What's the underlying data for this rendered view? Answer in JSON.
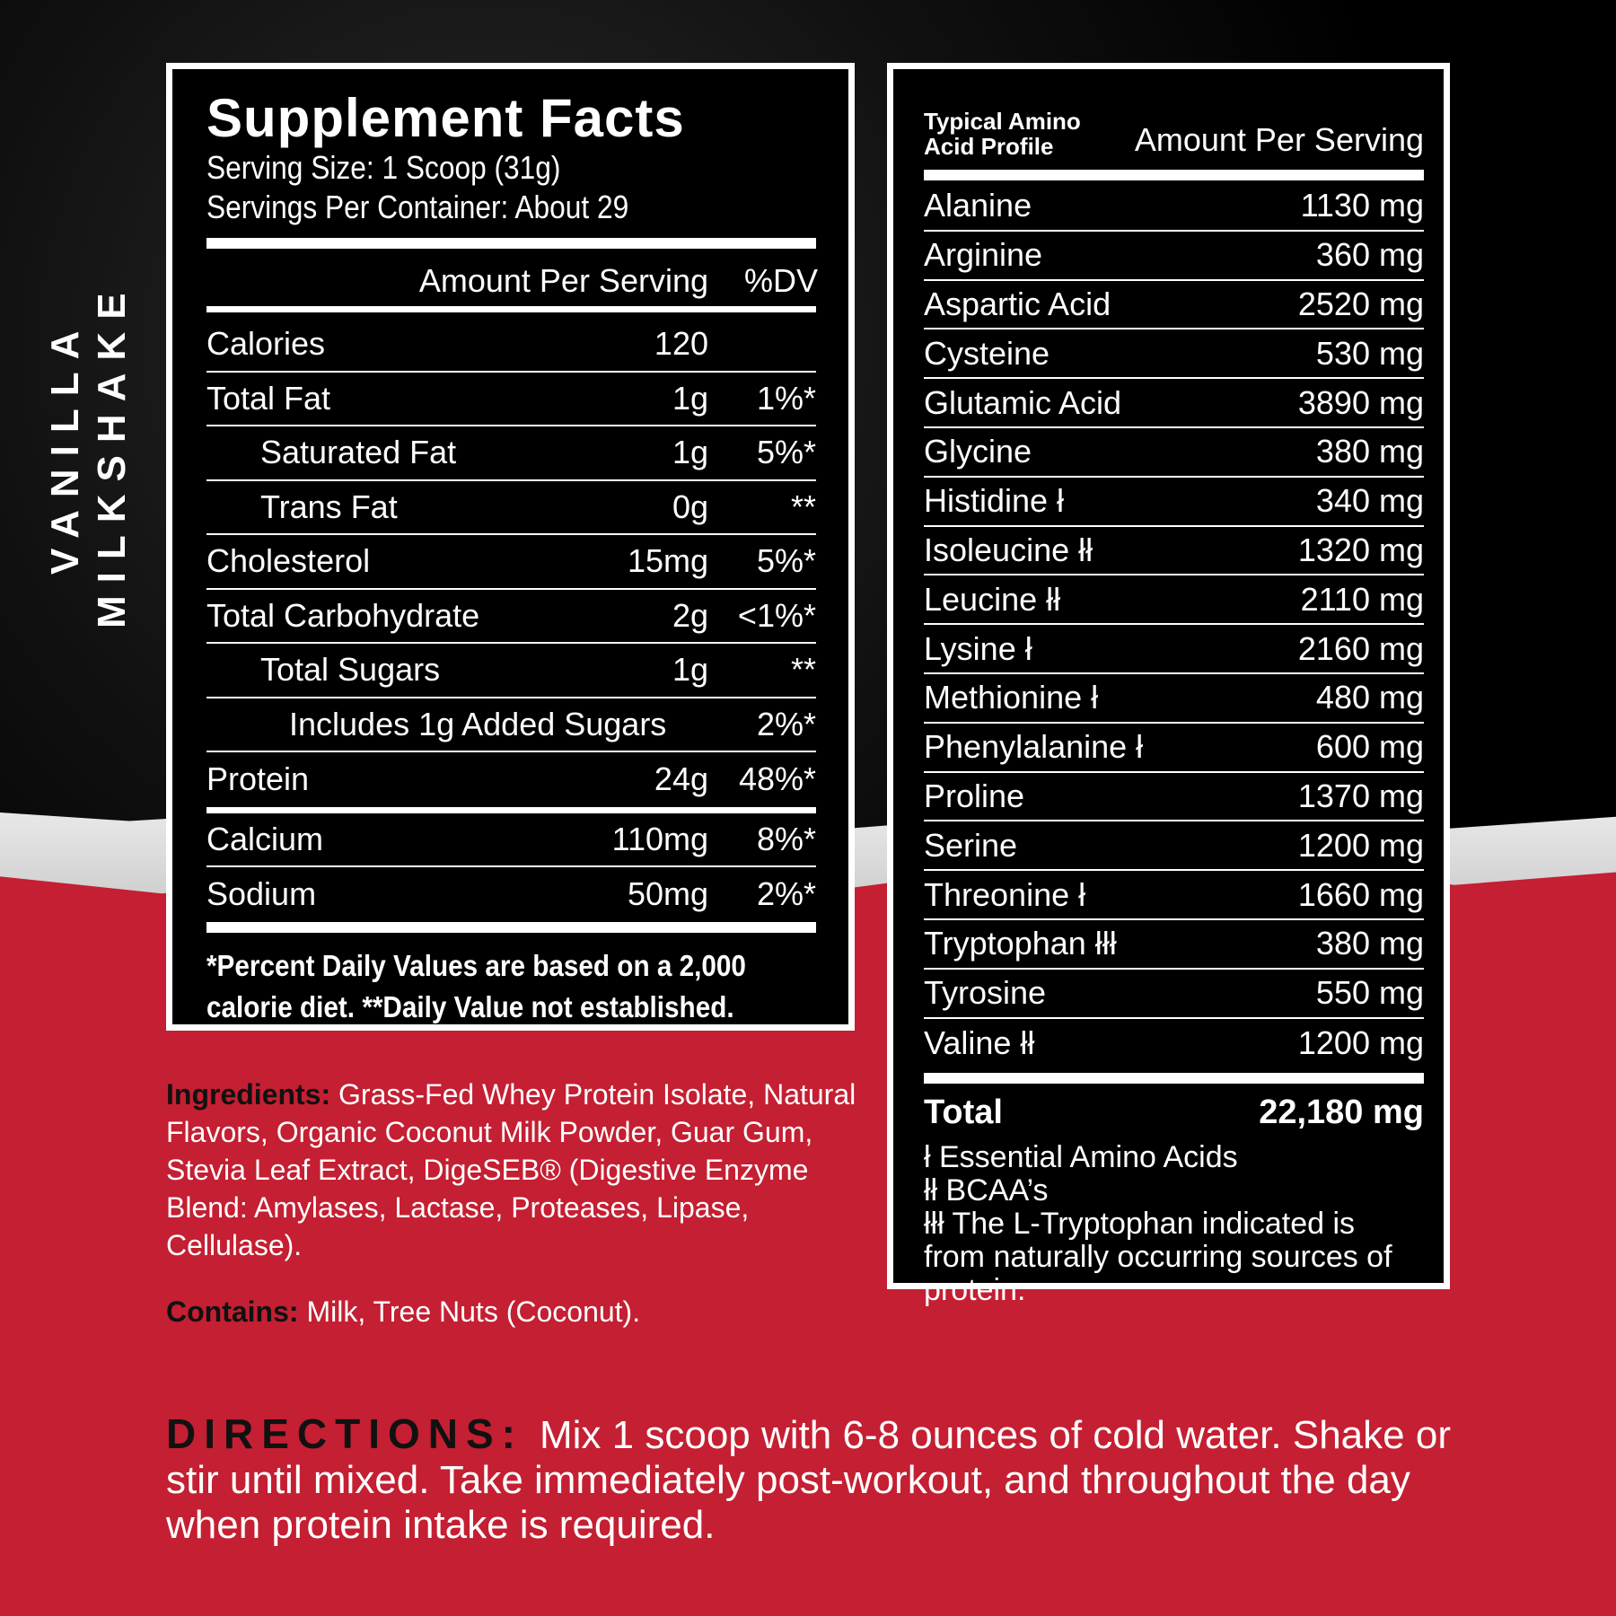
{
  "colors": {
    "red": "#c41f32",
    "black": "#000000",
    "white": "#ffffff"
  },
  "flavor": {
    "line1": "VANILLA",
    "line2": "MILKSHAKE"
  },
  "facts": {
    "title": "Supplement Facts",
    "serving_size": "Serving Size: 1 Scoop (31g)",
    "servings_per_container": "Servings Per Container: About 29",
    "col_amount": "Amount Per Serving",
    "col_dv": "%DV",
    "rows": [
      {
        "name": "Calories",
        "amount": "120",
        "dv": ""
      },
      {
        "name": "Total Fat",
        "amount": "1g",
        "dv": "1%*"
      },
      {
        "name": "Saturated Fat",
        "amount": "1g",
        "dv": "5%*"
      },
      {
        "name": "Trans Fat",
        "amount": "0g",
        "dv": "**"
      },
      {
        "name": "Cholesterol",
        "amount": "15mg",
        "dv": "5%*"
      },
      {
        "name": "Total Carbohydrate",
        "amount": "2g",
        "dv": "<1%*"
      },
      {
        "name": "Total Sugars",
        "amount": "1g",
        "dv": "**"
      },
      {
        "name": "Includes 1g Added Sugars",
        "amount": "",
        "dv": "2%*"
      },
      {
        "name": "Protein",
        "amount": "24g",
        "dv": "48%*"
      }
    ],
    "minerals": [
      {
        "name": "Calcium",
        "amount": "110mg",
        "dv": "8%*"
      },
      {
        "name": "Sodium",
        "amount": "50mg",
        "dv": "2%*"
      }
    ],
    "footnote1": "*Percent Daily Values are based on a 2,000",
    "footnote2": "calorie diet. **Daily Value not established."
  },
  "amino": {
    "title1": "Typical Amino",
    "title2": "Acid Profile",
    "col_amount": "Amount Per Serving",
    "rows": [
      {
        "name": "Alanine",
        "amount": "1130 mg"
      },
      {
        "name": "Arginine",
        "amount": "360 mg"
      },
      {
        "name": "Aspartic Acid",
        "amount": "2520 mg"
      },
      {
        "name": "Cysteine",
        "amount": "530 mg"
      },
      {
        "name": "Glutamic Acid",
        "amount": "3890 mg"
      },
      {
        "name": "Glycine",
        "amount": "380 mg"
      },
      {
        "name": "Histidine ł",
        "amount": "340 mg"
      },
      {
        "name": "Isoleucine łł",
        "amount": "1320 mg"
      },
      {
        "name": "Leucine łł",
        "amount": "2110 mg"
      },
      {
        "name": "Lysine ł",
        "amount": "2160 mg"
      },
      {
        "name": "Methionine ł",
        "amount": "480 mg"
      },
      {
        "name": "Phenylalanine ł",
        "amount": "600 mg"
      },
      {
        "name": "Proline",
        "amount": "1370 mg"
      },
      {
        "name": "Serine",
        "amount": "1200 mg"
      },
      {
        "name": "Threonine ł",
        "amount": "1660 mg"
      },
      {
        "name": "Tryptophan łłł",
        "amount": "380 mg"
      },
      {
        "name": "Tyrosine",
        "amount": "550 mg"
      },
      {
        "name": "Valine łł",
        "amount": "1200 mg"
      }
    ],
    "total_label": "Total",
    "total_amount": "22,180 mg",
    "legend": [
      "ł  Essential Amino Acids",
      "łł BCAA’s",
      "łłł The L-Tryptophan indicated is from naturally occurring sources of protein."
    ]
  },
  "ingredients": {
    "label": "Ingredients:",
    "text": " Grass-Fed Whey Protein Isolate, Natural Flavors, Organic Coconut Milk Powder, Guar Gum, Stevia Leaf Extract, DigeSEB® (Digestive Enzyme Blend: Amylases, Lactase, Proteases, Lipase, Cellulase)."
  },
  "contains": {
    "label": "Contains:",
    "text": " Milk, Tree Nuts (Coconut)."
  },
  "directions": {
    "label": "DIRECTIONS:",
    "text": "Mix 1 scoop with 6-8 ounces of cold water. Shake or stir until mixed. Take immediately post-workout, and throughout the day when protein intake is required."
  }
}
